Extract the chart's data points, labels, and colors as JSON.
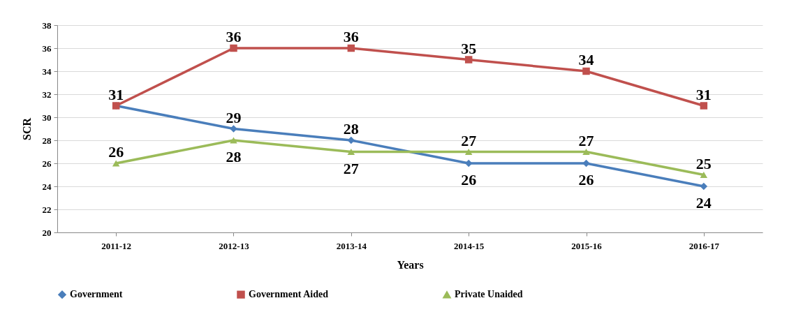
{
  "chart_data": {
    "type": "line",
    "xlabel": "Years",
    "ylabel": "SCR",
    "categories": [
      "2011-12",
      "2012-13",
      "2013-14",
      "2014-15",
      "2015-16",
      "2016-17"
    ],
    "series": [
      {
        "name": "Government",
        "color": "#4a7ebb",
        "marker": "diamond",
        "values": [
          31,
          29,
          28,
          26,
          26,
          24
        ],
        "value_labels": [
          null,
          "29",
          "28",
          "26",
          "26",
          "24"
        ]
      },
      {
        "name": "Government Aided",
        "color": "#c0504d",
        "marker": "square",
        "values": [
          31,
          36,
          36,
          35,
          34,
          31
        ],
        "value_labels": [
          "31",
          "36",
          "36",
          "35",
          "34",
          "31"
        ]
      },
      {
        "name": "Private Unaided",
        "color": "#9bbb59",
        "marker": "triangle",
        "values": [
          26,
          28,
          27,
          27,
          27,
          25
        ],
        "value_labels": [
          "26",
          "28",
          "27",
          "27",
          "27",
          "25"
        ]
      }
    ],
    "ylim": [
      20,
      38
    ],
    "yticks": [
      20,
      22,
      24,
      26,
      28,
      30,
      32,
      34,
      36,
      38
    ],
    "grid": "y",
    "legend": "bottom",
    "line_style": "solid"
  }
}
